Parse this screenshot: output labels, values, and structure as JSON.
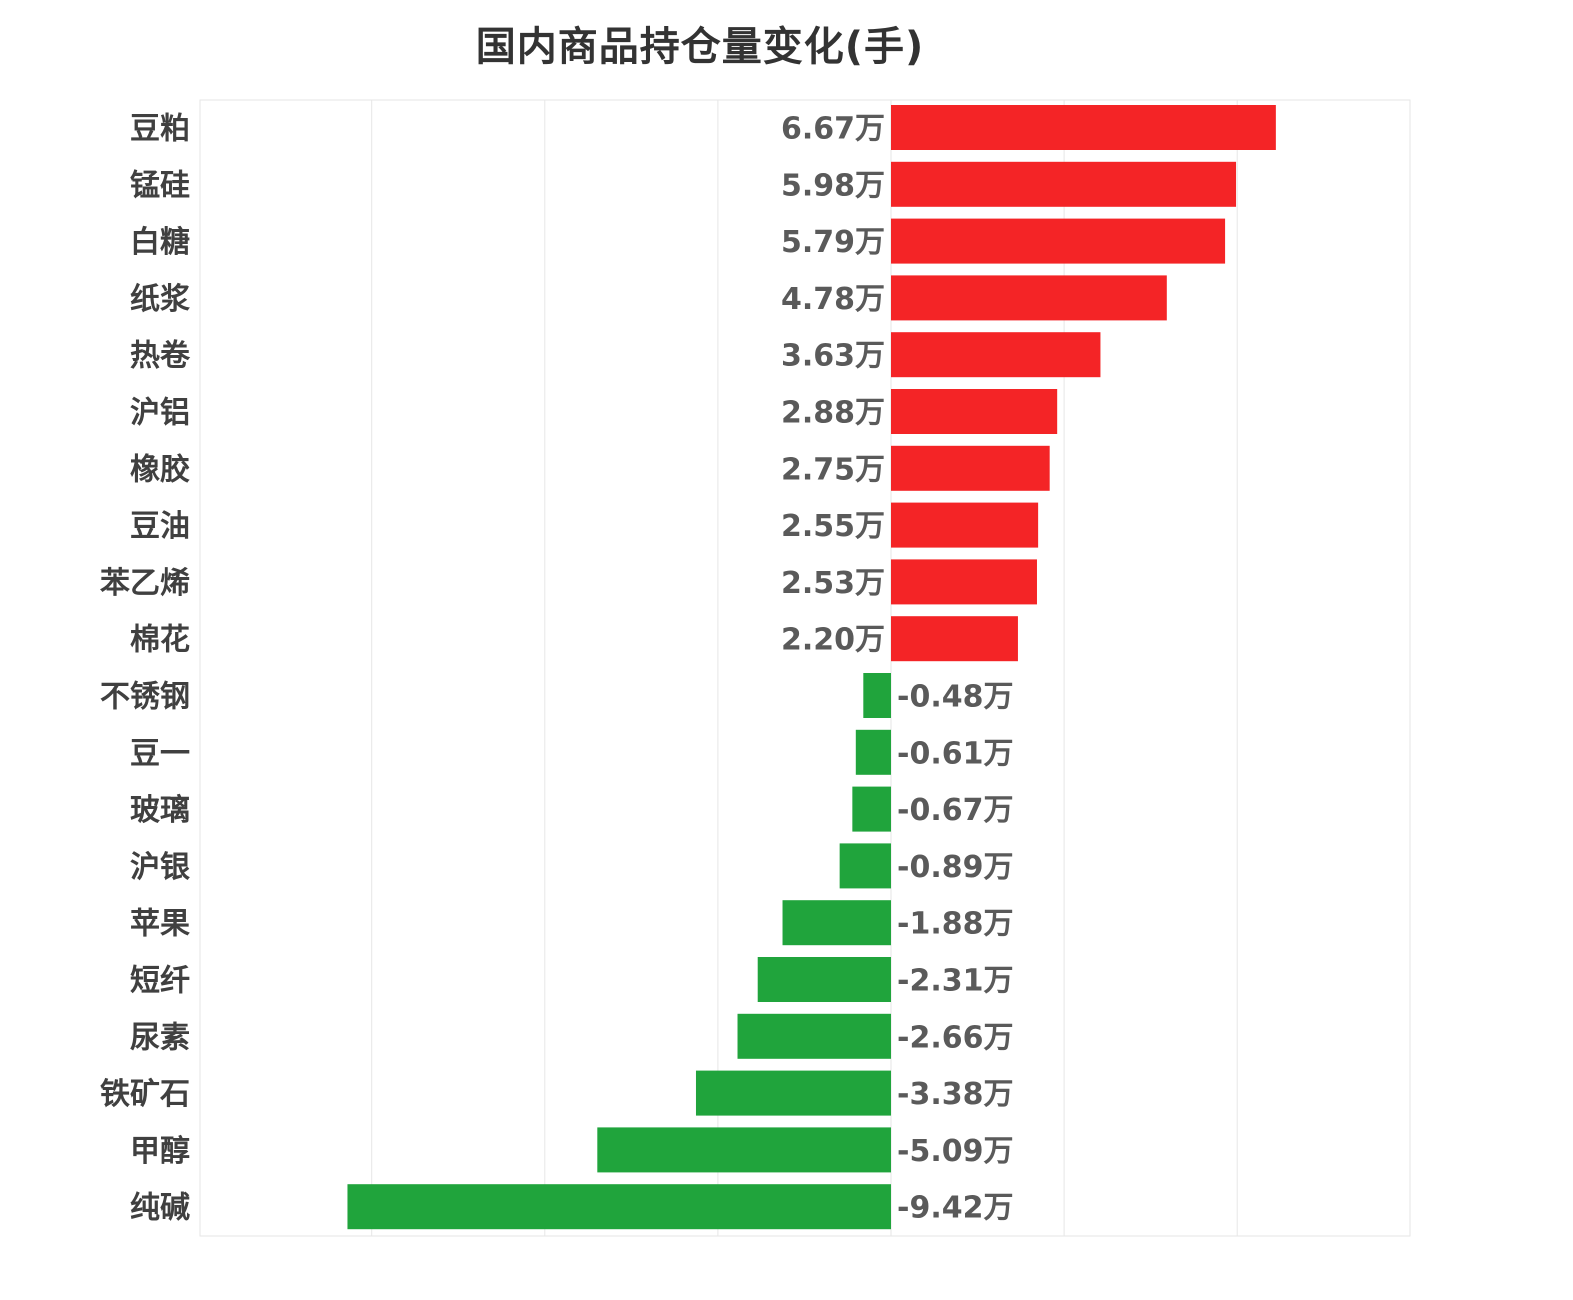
{
  "chart_data": {
    "type": "bar",
    "orientation": "horizontal",
    "title": "国内商品持仓量变化(手)",
    "xlabel": "",
    "ylabel": "",
    "xlim": [
      -12,
      3.5
    ],
    "grid": true,
    "legend": "none",
    "colors": {
      "positive": "#f42426",
      "negative": "#20a43c"
    },
    "categories": [
      "豆粕",
      "锰硅",
      "白糖",
      "纸浆",
      "热卷",
      "沪铝",
      "橡胶",
      "豆油",
      "苯乙烯",
      "棉花",
      "不锈钢",
      "豆一",
      "玻璃",
      "沪银",
      "苹果",
      "短纤",
      "尿素",
      "铁矿石",
      "甲醇",
      "纯碱"
    ],
    "values": [
      6.67,
      5.98,
      5.79,
      4.78,
      3.63,
      2.88,
      2.75,
      2.55,
      2.53,
      2.2,
      -0.48,
      -0.61,
      -0.67,
      -0.89,
      -1.88,
      -2.31,
      -2.66,
      -3.38,
      -5.09,
      -9.42
    ],
    "value_labels": [
      "6.67万",
      "5.98万",
      "5.79万",
      "4.78万",
      "3.63万",
      "2.88万",
      "2.75万",
      "2.55万",
      "2.53万",
      "2.20万",
      "-0.48万",
      "-0.61万",
      "-0.67万",
      "-0.89万",
      "-1.88万",
      "-2.31万",
      "-2.66万",
      "-3.38万",
      "-5.09万",
      "-9.42万"
    ],
    "unit": "万"
  }
}
